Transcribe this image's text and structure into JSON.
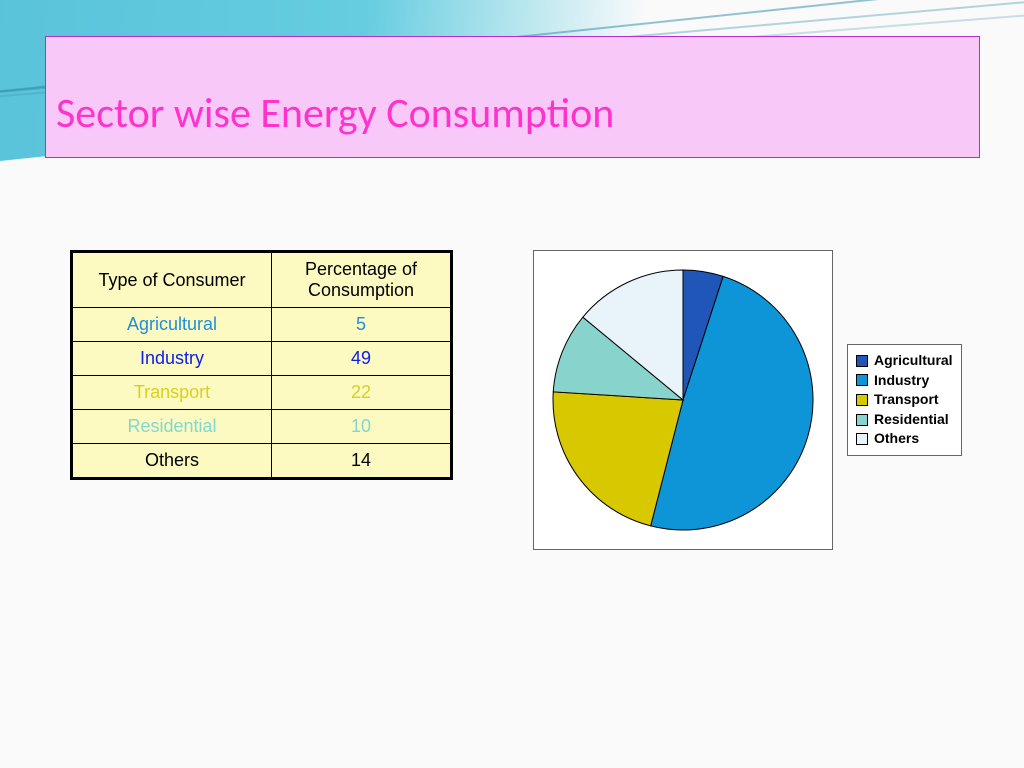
{
  "title": {
    "text": "Sector wise Energy Consumption",
    "color": "#ff33cc",
    "box_bg": "#f8c8f8",
    "box_border": "#b030d0",
    "fontsize": 42
  },
  "table": {
    "header_bg": "#fcfac0",
    "row_bg": "#fcfac0",
    "columns": [
      "Type of Consumer",
      "Percentage of Consumption"
    ],
    "rows": [
      {
        "label": "Agricultural",
        "value": 5,
        "color": "#1f8fd8"
      },
      {
        "label": "Industry",
        "value": 49,
        "color": "#1020e0"
      },
      {
        "label": "Transport",
        "value": 22,
        "color": "#d8d020"
      },
      {
        "label": "Residential",
        "value": 10,
        "color": "#80d8d0"
      },
      {
        "label": "Others",
        "value": 14,
        "color": "#000000"
      }
    ]
  },
  "pie": {
    "type": "pie",
    "radius": 130,
    "border_color": "#000000",
    "background_color": "#ffffff",
    "start_angle_deg": -90,
    "slices": [
      {
        "label": "Agricultural",
        "value": 5,
        "color": "#1f56b8"
      },
      {
        "label": "Industry",
        "value": 49,
        "color": "#0d95d8"
      },
      {
        "label": "Transport",
        "value": 22,
        "color": "#d8c800"
      },
      {
        "label": "Residential",
        "value": 10,
        "color": "#88d4cc"
      },
      {
        "label": "Others",
        "value": 14,
        "color": "#e8f4fa"
      }
    ]
  },
  "legend": {
    "items": [
      {
        "label": "Agricultural",
        "color": "#1f56b8"
      },
      {
        "label": "Industry",
        "color": "#0d95d8"
      },
      {
        "label": "Transport",
        "color": "#d8c800"
      },
      {
        "label": "Residential",
        "color": "#88d4cc"
      },
      {
        "label": "Others",
        "color": "#e8f4fa"
      }
    ]
  }
}
